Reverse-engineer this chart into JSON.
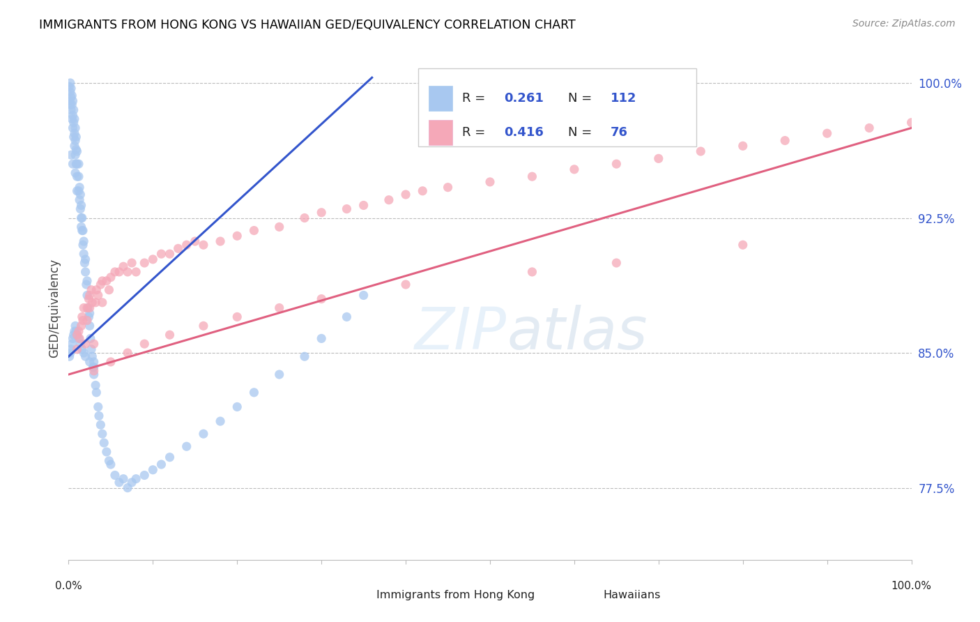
{
  "title": "IMMIGRANTS FROM HONG KONG VS HAWAIIAN GED/EQUIVALENCY CORRELATION CHART",
  "source": "Source: ZipAtlas.com",
  "ylabel": "GED/Equivalency",
  "yticks": [
    "77.5%",
    "85.0%",
    "92.5%",
    "100.0%"
  ],
  "ytick_vals": [
    0.775,
    0.85,
    0.925,
    1.0
  ],
  "legend_label1": "Immigrants from Hong Kong",
  "legend_label2": "Hawaiians",
  "blue_color": "#A8C8F0",
  "pink_color": "#F5A8B8",
  "trend_blue": "#3355CC",
  "trend_pink": "#E06080",
  "blue_scatter_x": [
    0.001,
    0.001,
    0.002,
    0.002,
    0.002,
    0.003,
    0.003,
    0.003,
    0.003,
    0.004,
    0.004,
    0.004,
    0.005,
    0.005,
    0.005,
    0.005,
    0.006,
    0.006,
    0.006,
    0.007,
    0.007,
    0.007,
    0.008,
    0.008,
    0.008,
    0.008,
    0.009,
    0.009,
    0.009,
    0.01,
    0.01,
    0.01,
    0.01,
    0.012,
    0.012,
    0.012,
    0.013,
    0.013,
    0.014,
    0.014,
    0.015,
    0.015,
    0.015,
    0.016,
    0.016,
    0.017,
    0.017,
    0.018,
    0.018,
    0.019,
    0.02,
    0.02,
    0.021,
    0.022,
    0.022,
    0.023,
    0.024,
    0.025,
    0.025,
    0.026,
    0.027,
    0.028,
    0.029,
    0.03,
    0.03,
    0.032,
    0.033,
    0.035,
    0.036,
    0.038,
    0.04,
    0.042,
    0.045,
    0.048,
    0.05,
    0.055,
    0.06,
    0.065,
    0.07,
    0.075,
    0.08,
    0.09,
    0.1,
    0.11,
    0.12,
    0.14,
    0.16,
    0.18,
    0.2,
    0.22,
    0.25,
    0.28,
    0.3,
    0.33,
    0.35,
    0.001,
    0.002,
    0.003,
    0.004,
    0.005,
    0.006,
    0.007,
    0.008,
    0.009,
    0.01,
    0.012,
    0.014,
    0.016,
    0.018,
    0.02,
    0.025,
    0.03
  ],
  "blue_scatter_y": [
    0.99,
    0.998,
    0.988,
    0.995,
    1.0,
    0.985,
    0.992,
    0.997,
    0.96,
    0.98,
    0.988,
    0.993,
    0.975,
    0.982,
    0.99,
    0.955,
    0.97,
    0.978,
    0.985,
    0.965,
    0.972,
    0.98,
    0.96,
    0.968,
    0.975,
    0.95,
    0.955,
    0.963,
    0.97,
    0.948,
    0.955,
    0.962,
    0.94,
    0.94,
    0.948,
    0.955,
    0.935,
    0.942,
    0.93,
    0.938,
    0.925,
    0.932,
    0.92,
    0.918,
    0.925,
    0.91,
    0.918,
    0.905,
    0.912,
    0.9,
    0.895,
    0.902,
    0.888,
    0.882,
    0.89,
    0.875,
    0.87,
    0.865,
    0.872,
    0.858,
    0.852,
    0.848,
    0.842,
    0.838,
    0.845,
    0.832,
    0.828,
    0.82,
    0.815,
    0.81,
    0.805,
    0.8,
    0.795,
    0.79,
    0.788,
    0.782,
    0.778,
    0.78,
    0.775,
    0.778,
    0.78,
    0.782,
    0.785,
    0.788,
    0.792,
    0.798,
    0.805,
    0.812,
    0.82,
    0.828,
    0.838,
    0.848,
    0.858,
    0.87,
    0.882,
    0.848,
    0.85,
    0.852,
    0.855,
    0.858,
    0.86,
    0.862,
    0.865,
    0.862,
    0.86,
    0.858,
    0.855,
    0.852,
    0.85,
    0.848,
    0.845,
    0.842
  ],
  "pink_scatter_x": [
    0.01,
    0.01,
    0.012,
    0.013,
    0.015,
    0.016,
    0.017,
    0.018,
    0.02,
    0.022,
    0.022,
    0.024,
    0.025,
    0.025,
    0.027,
    0.028,
    0.03,
    0.032,
    0.033,
    0.035,
    0.038,
    0.04,
    0.04,
    0.045,
    0.048,
    0.05,
    0.055,
    0.06,
    0.065,
    0.07,
    0.075,
    0.08,
    0.09,
    0.1,
    0.11,
    0.12,
    0.13,
    0.14,
    0.15,
    0.16,
    0.18,
    0.2,
    0.22,
    0.25,
    0.28,
    0.3,
    0.33,
    0.35,
    0.38,
    0.4,
    0.42,
    0.45,
    0.5,
    0.55,
    0.6,
    0.65,
    0.7,
    0.75,
    0.8,
    0.85,
    0.9,
    0.95,
    1.0,
    0.03,
    0.05,
    0.07,
    0.09,
    0.12,
    0.16,
    0.2,
    0.25,
    0.3,
    0.4,
    0.55,
    0.65,
    0.8
  ],
  "pink_scatter_y": [
    0.86,
    0.852,
    0.862,
    0.858,
    0.865,
    0.87,
    0.868,
    0.875,
    0.855,
    0.875,
    0.868,
    0.88,
    0.882,
    0.875,
    0.885,
    0.878,
    0.855,
    0.878,
    0.885,
    0.882,
    0.888,
    0.89,
    0.878,
    0.89,
    0.885,
    0.892,
    0.895,
    0.895,
    0.898,
    0.895,
    0.9,
    0.895,
    0.9,
    0.902,
    0.905,
    0.905,
    0.908,
    0.91,
    0.912,
    0.91,
    0.912,
    0.915,
    0.918,
    0.92,
    0.925,
    0.928,
    0.93,
    0.932,
    0.935,
    0.938,
    0.94,
    0.942,
    0.945,
    0.948,
    0.952,
    0.955,
    0.958,
    0.962,
    0.965,
    0.968,
    0.972,
    0.975,
    0.978,
    0.84,
    0.845,
    0.85,
    0.855,
    0.86,
    0.865,
    0.87,
    0.875,
    0.88,
    0.888,
    0.895,
    0.9,
    0.91
  ],
  "blue_trend_x": [
    0.0,
    0.36
  ],
  "blue_trend_y": [
    0.848,
    1.003
  ],
  "pink_trend_x": [
    0.0,
    1.0
  ],
  "pink_trend_y": [
    0.838,
    0.975
  ],
  "xlim": [
    0.0,
    1.0
  ],
  "ylim": [
    0.735,
    1.015
  ]
}
